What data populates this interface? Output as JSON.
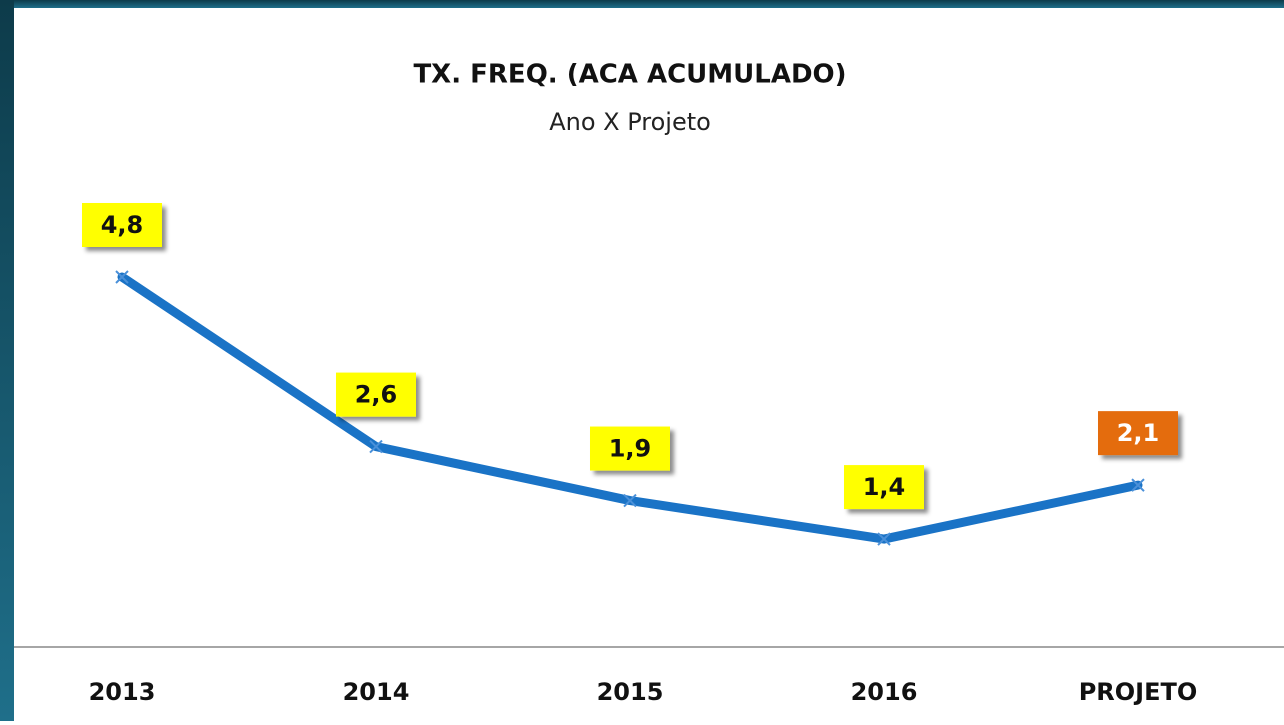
{
  "chart_data": {
    "type": "line",
    "title": "TX. FREQ. (ACA ACUMULADO)",
    "subtitle": "Ano X Projeto",
    "categories": [
      "2013",
      "2014",
      "2015",
      "2016",
      "PROJETO"
    ],
    "series": [
      {
        "color": "#1a73c6",
        "values": [
          4.8,
          2.6,
          1.9,
          1.4,
          2.1
        ],
        "value_labels": [
          "4,8",
          "2,6",
          "1,9",
          "1,4",
          "2,1"
        ],
        "label_colors": [
          "#ffff00",
          "#ffff00",
          "#ffff00",
          "#ffff00",
          "#e46c0a"
        ]
      }
    ]
  }
}
